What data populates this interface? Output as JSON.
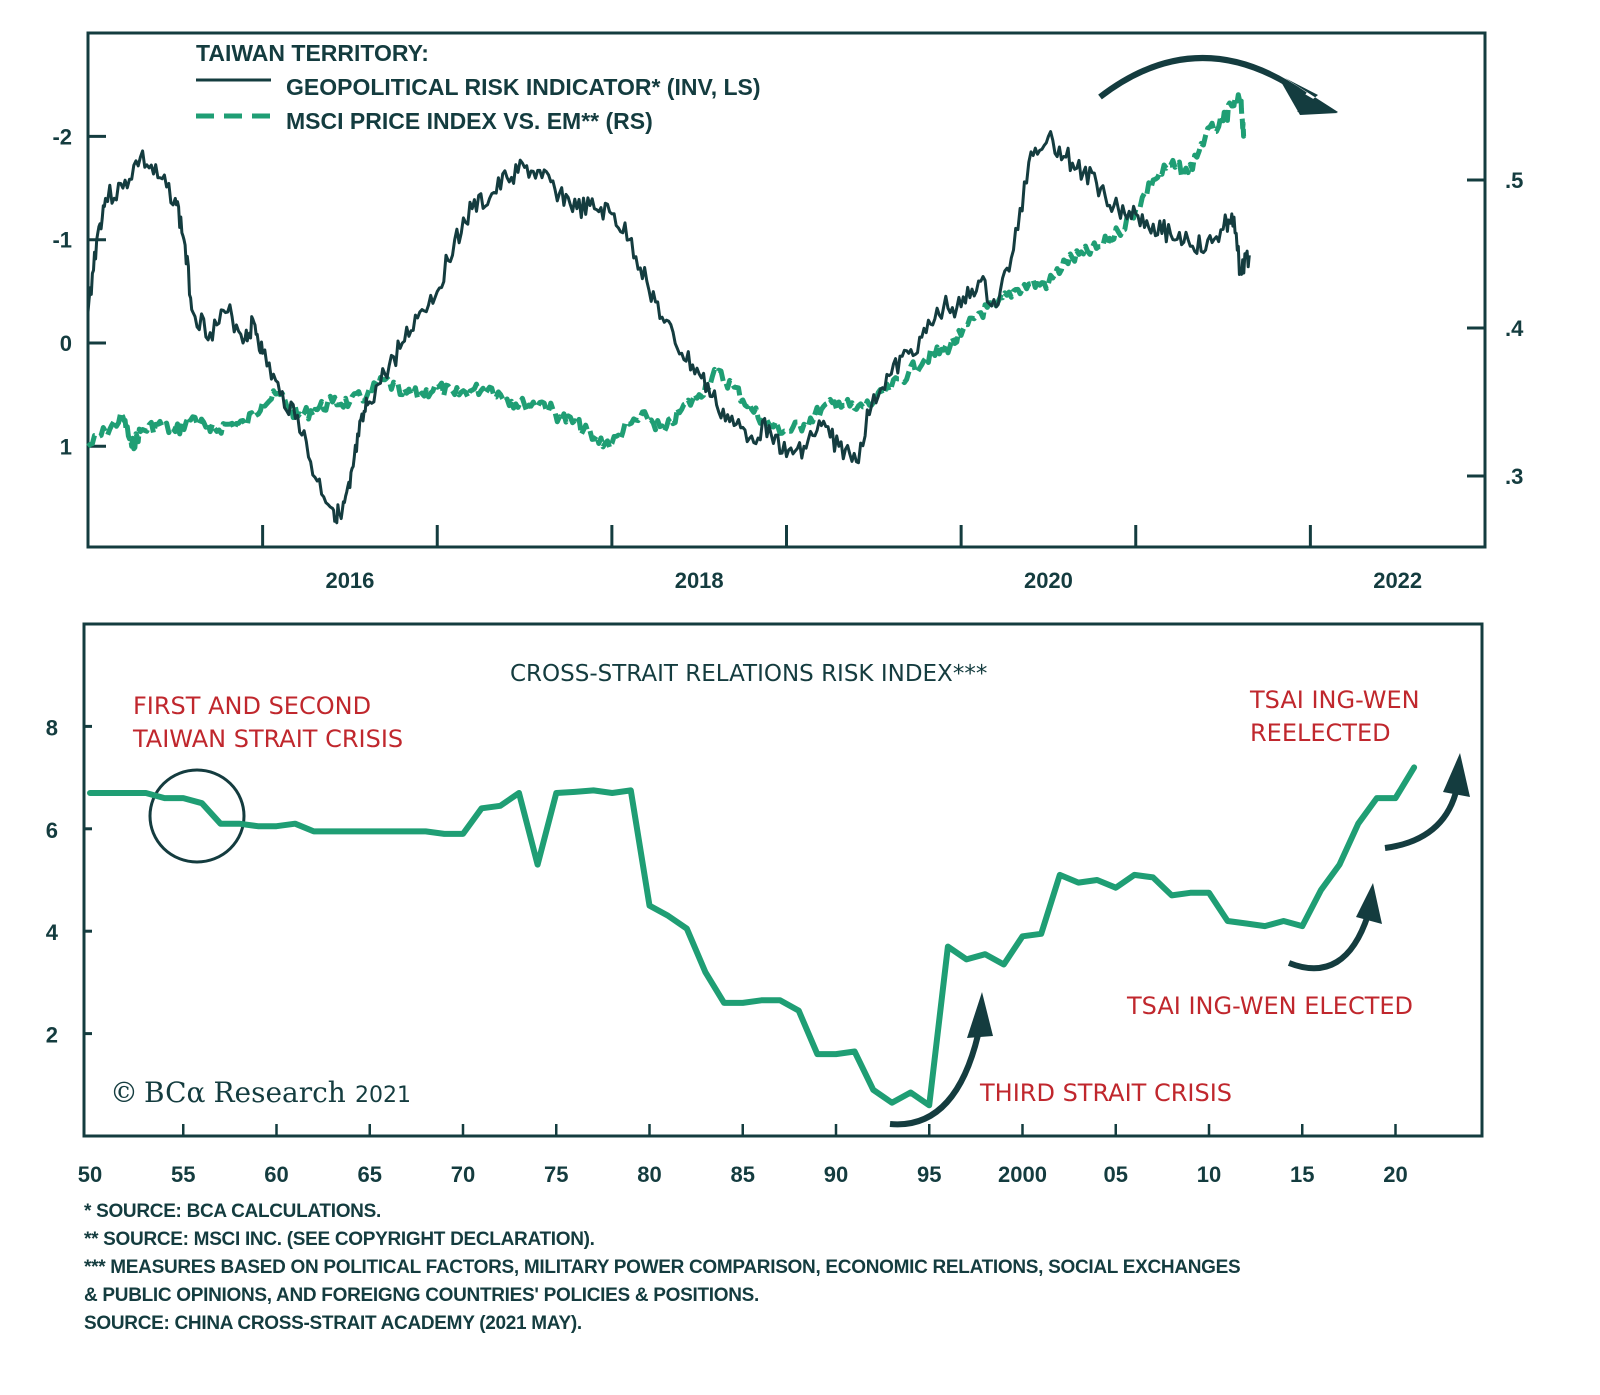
{
  "chart_data": [
    {
      "type": "line",
      "title": "TAIWAN TERRITORY:",
      "legend": [
        {
          "name": "GEOPOLITICAL RISK INDICATOR* (INV, LS)",
          "style": "solid",
          "color": "#143c3f"
        },
        {
          "name": "MSCI PRICE INDEX VS. EM** (RS)",
          "style": "dashed",
          "color": "#1f9e74"
        }
      ],
      "legend_position": "top-left",
      "xlabel": "",
      "x_range": [
        2014.5,
        2022.5
      ],
      "x_ticks": [
        2015.5,
        2016.5,
        2017.5,
        2018.5,
        2019.5,
        2020.5,
        2021.5
      ],
      "x_tick_labels": [
        {
          "value": 2016,
          "label": "2016"
        },
        {
          "value": 2018,
          "label": "2018"
        },
        {
          "value": 2020,
          "label": "2020"
        },
        {
          "value": 2022,
          "label": "2022"
        }
      ],
      "y_left": {
        "label": "",
        "inverted": true,
        "range": [
          -2.2,
          2.0
        ],
        "ticks": [
          -2,
          -1,
          0,
          1
        ],
        "tick_labels": [
          "-2",
          "-1",
          "0",
          "1"
        ]
      },
      "y_right": {
        "label": "",
        "range": [
          0.255,
          0.6
        ],
        "ticks": [
          0.3,
          0.4,
          0.5
        ],
        "tick_labels": [
          ".3",
          ".4",
          ".5"
        ]
      },
      "grid": false,
      "series": [
        {
          "name": "GEOPOLITICAL RISK INDICATOR* (INV, LS)",
          "axis": "left",
          "x": [
            2014.5,
            2014.55,
            2014.6,
            2014.7,
            2014.8,
            2014.9,
            2015.0,
            2015.05,
            2015.1,
            2015.2,
            2015.3,
            2015.4,
            2015.45,
            2015.5,
            2015.6,
            2015.7,
            2015.8,
            2015.9,
            2015.95,
            2016.0,
            2016.05,
            2016.1,
            2016.2,
            2016.3,
            2016.4,
            2016.5,
            2016.6,
            2016.7,
            2016.8,
            2016.9,
            2017.0,
            2017.1,
            2017.2,
            2017.3,
            2017.4,
            2017.5,
            2017.6,
            2017.7,
            2017.8,
            2017.9,
            2018.0,
            2018.1,
            2018.2,
            2018.3,
            2018.4,
            2018.5,
            2018.6,
            2018.7,
            2018.8,
            2018.9,
            2019.0,
            2019.1,
            2019.2,
            2019.3,
            2019.4,
            2019.5,
            2019.6,
            2019.7,
            2019.8,
            2019.9,
            2020.0,
            2020.1,
            2020.2,
            2020.3,
            2020.4,
            2020.5,
            2020.6,
            2020.7,
            2020.8,
            2020.9,
            2021.0,
            2021.05,
            2021.1,
            2021.15
          ],
          "values": [
            -0.3,
            -1.0,
            -1.4,
            -1.5,
            -1.8,
            -1.6,
            -1.4,
            -1.0,
            -0.3,
            -0.1,
            -0.3,
            -0.05,
            -0.2,
            0.1,
            0.5,
            0.7,
            1.3,
            1.6,
            1.7,
            1.4,
            0.9,
            0.6,
            0.3,
            0.0,
            -0.3,
            -0.5,
            -1.0,
            -1.3,
            -1.4,
            -1.6,
            -1.7,
            -1.6,
            -1.45,
            -1.3,
            -1.3,
            -1.25,
            -1.0,
            -0.6,
            -0.2,
            0.1,
            0.3,
            0.6,
            0.8,
            0.9,
            0.8,
            1.1,
            1.0,
            0.8,
            1.0,
            1.15,
            0.5,
            0.3,
            0.1,
            -0.1,
            -0.35,
            -0.35,
            -0.6,
            -0.35,
            -0.9,
            -1.85,
            -2.0,
            -1.8,
            -1.65,
            -1.5,
            -1.3,
            -1.25,
            -1.15,
            -1.05,
            -1.0,
            -0.9,
            -1.1,
            -1.25,
            -0.7,
            -0.85
          ]
        },
        {
          "name": "MSCI PRICE INDEX VS. EM** (RS)",
          "axis": "right",
          "x": [
            2014.5,
            2014.6,
            2014.7,
            2014.75,
            2014.8,
            2014.9,
            2015.0,
            2015.1,
            2015.2,
            2015.3,
            2015.4,
            2015.5,
            2015.6,
            2015.7,
            2015.8,
            2015.9,
            2016.0,
            2016.1,
            2016.2,
            2016.3,
            2016.4,
            2016.5,
            2016.6,
            2016.7,
            2016.8,
            2016.9,
            2017.0,
            2017.1,
            2017.2,
            2017.3,
            2017.4,
            2017.5,
            2017.6,
            2017.7,
            2017.8,
            2017.9,
            2018.0,
            2018.1,
            2018.2,
            2018.3,
            2018.4,
            2018.5,
            2018.6,
            2018.7,
            2018.8,
            2018.9,
            2019.0,
            2019.1,
            2019.2,
            2019.3,
            2019.4,
            2019.5,
            2019.6,
            2019.7,
            2019.8,
            2019.9,
            2020.0,
            2020.1,
            2020.2,
            2020.3,
            2020.4,
            2020.5,
            2020.6,
            2020.7,
            2020.8,
            2020.9,
            2021.0,
            2021.05,
            2021.1,
            2021.12
          ],
          "values": [
            0.32,
            0.33,
            0.34,
            0.32,
            0.33,
            0.335,
            0.33,
            0.34,
            0.33,
            0.335,
            0.335,
            0.35,
            0.355,
            0.34,
            0.345,
            0.35,
            0.35,
            0.355,
            0.365,
            0.355,
            0.355,
            0.36,
            0.355,
            0.358,
            0.36,
            0.352,
            0.348,
            0.35,
            0.34,
            0.335,
            0.325,
            0.322,
            0.335,
            0.34,
            0.33,
            0.345,
            0.355,
            0.37,
            0.36,
            0.345,
            0.335,
            0.33,
            0.335,
            0.345,
            0.35,
            0.345,
            0.35,
            0.36,
            0.37,
            0.38,
            0.385,
            0.395,
            0.41,
            0.415,
            0.425,
            0.43,
            0.43,
            0.445,
            0.45,
            0.455,
            0.465,
            0.48,
            0.5,
            0.51,
            0.505,
            0.53,
            0.54,
            0.55,
            0.555,
            0.53
          ]
        }
      ],
      "annotations": [
        {
          "type": "curved-arrow",
          "direction": "down-right",
          "near_x": 2021.0
        }
      ]
    },
    {
      "type": "line",
      "title": "CROSS-STRAIT RELATIONS RISK INDEX***",
      "xlabel": "",
      "ylabel": "",
      "x_range": [
        1950,
        2025
      ],
      "y_range": [
        0,
        10
      ],
      "grid": false,
      "x_ticks": [
        1950,
        1955,
        1960,
        1965,
        1970,
        1975,
        1980,
        1985,
        1990,
        1995,
        2000,
        2005,
        2010,
        2015,
        2020
      ],
      "x_tick_labels": [
        "50",
        "55",
        "60",
        "65",
        "70",
        "75",
        "80",
        "85",
        "90",
        "95",
        "2000",
        "05",
        "10",
        "15",
        "20"
      ],
      "y_ticks": [
        2,
        4,
        6,
        8
      ],
      "y_tick_labels": [
        "2",
        "4",
        "6",
        "8"
      ],
      "series": [
        {
          "name": "CROSS-STRAIT RELATIONS RISK INDEX",
          "color": "#1f9e74",
          "x": [
            1950,
            1951,
            1952,
            1953,
            1954,
            1955,
            1956,
            1957,
            1958,
            1959,
            1960,
            1961,
            1962,
            1963,
            1964,
            1965,
            1966,
            1967,
            1968,
            1969,
            1970,
            1971,
            1972,
            1973,
            1974,
            1975,
            1976,
            1977,
            1978,
            1979,
            1980,
            1981,
            1982,
            1983,
            1984,
            1985,
            1986,
            1987,
            1988,
            1989,
            1990,
            1991,
            1992,
            1993,
            1994,
            1995,
            1996,
            1997,
            1998,
            1999,
            2000,
            2001,
            2002,
            2003,
            2004,
            2005,
            2006,
            2007,
            2008,
            2009,
            2010,
            2011,
            2012,
            2013,
            2014,
            2015,
            2016,
            2017,
            2018,
            2019,
            2020,
            2021
          ],
          "values": [
            6.7,
            6.7,
            6.7,
            6.7,
            6.6,
            6.6,
            6.5,
            6.1,
            6.1,
            6.05,
            6.05,
            6.1,
            5.95,
            5.95,
            5.95,
            5.95,
            5.95,
            5.95,
            5.95,
            5.9,
            5.9,
            6.4,
            6.45,
            6.7,
            5.3,
            6.7,
            6.72,
            6.75,
            6.7,
            6.75,
            4.5,
            4.3,
            4.05,
            3.2,
            2.6,
            2.6,
            2.65,
            2.65,
            2.45,
            1.6,
            1.6,
            1.65,
            0.9,
            0.65,
            0.85,
            0.6,
            3.7,
            3.45,
            3.55,
            3.35,
            3.9,
            3.95,
            5.1,
            4.95,
            5.0,
            4.85,
            5.1,
            5.05,
            4.7,
            4.75,
            4.75,
            4.2,
            4.15,
            4.1,
            4.2,
            4.1,
            4.8,
            5.3,
            6.1,
            6.6,
            6.6,
            7.2
          ]
        }
      ],
      "annotations": [
        {
          "text_line1": "FIRST AND SECOND",
          "text_line2": "TAIWAN STRAIT CRISIS",
          "marker": "circle",
          "x": 1956
        },
        {
          "text_line1": "THIRD STRAIT CRISIS",
          "marker": "arrow",
          "x": 1996
        },
        {
          "text_line1": "TSAI ING-WEN ELECTED",
          "marker": "arrow",
          "x": 2016
        },
        {
          "text_line1": "TSAI ING-WEN",
          "text_line2": "REELECTED",
          "marker": "arrow",
          "x": 2020
        }
      ]
    }
  ],
  "top": {
    "legend_title": "TAIWAN TERRITORY:",
    "legend_1": "GEOPOLITICAL RISK INDICATOR* (INV, LS)",
    "legend_2": "MSCI PRICE INDEX VS. EM** (RS)"
  },
  "bottom": {
    "title": "CROSS-STRAIT RELATIONS RISK INDEX***",
    "anno_first_1": "FIRST AND SECOND",
    "anno_first_2": "TAIWAN STRAIT CRISIS",
    "anno_third": "THIRD STRAIT CRISIS",
    "anno_elected": "TSAI ING-WEN ELECTED",
    "anno_reelected_1": "TSAI ING-WEN",
    "anno_reelected_2": "REELECTED",
    "logo_copyright": "©",
    "logo_brand": "BCα",
    "logo_name": "Research",
    "logo_year": "2021"
  },
  "footnotes": [
    " *  SOURCE: BCA CALCULATIONS.",
    " ** SOURCE: MSCI INC. (SEE COPYRIGHT DECLARATION).",
    "*** MEASURES BASED ON POLITICAL FACTORS, MILITARY POWER COMPARISON, ECONOMIC RELATIONS, SOCIAL EXCHANGES",
    "& PUBLIC OPINIONS, AND FOREIGNG  COUNTRIES' POLICIES & POSITIONS.",
    "SOURCE: CHINA CROSS-STRAIT ACADEMY (2021 MAY)."
  ],
  "colors": {
    "dark": "#143c3f",
    "green": "#1f9e74",
    "red": "#c0272d"
  }
}
